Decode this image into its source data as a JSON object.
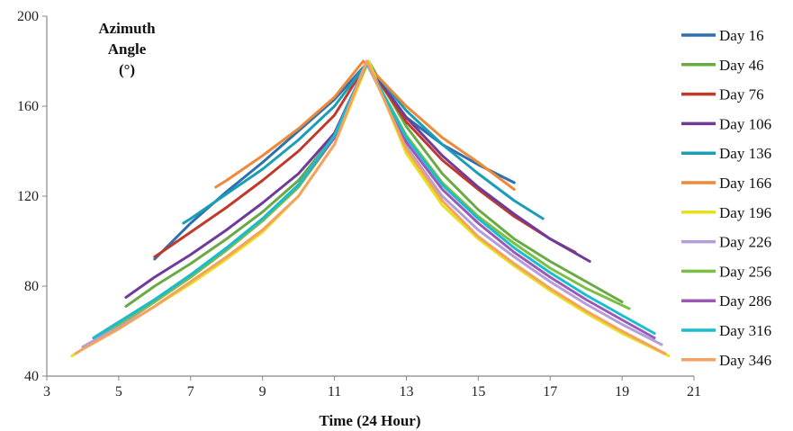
{
  "chart_data": {
    "type": "line",
    "title": "",
    "ylabel": "Azimuth Angle (°)",
    "ylabel_lines": [
      "Azimuth",
      "Angle",
      "(°)"
    ],
    "xlabel": "Time (24 Hour)",
    "xlim": [
      3,
      21
    ],
    "ylim": [
      40,
      200
    ],
    "x_ticks": [
      3,
      5,
      7,
      9,
      11,
      13,
      15,
      17,
      19,
      21
    ],
    "y_ticks": [
      40,
      80,
      120,
      160,
      200
    ],
    "grid": false,
    "legend_position": "right",
    "series": [
      {
        "name": "Day 16",
        "color": "#2e6fb0",
        "x": [
          6.0,
          7,
          8,
          9,
          10,
          11,
          11.9,
          13,
          14,
          15,
          16.0
        ],
        "y": [
          92,
          108,
          122,
          135,
          149,
          163,
          179,
          155,
          143,
          134,
          126
        ]
      },
      {
        "name": "Day 46",
        "color": "#6aaa44",
        "x": [
          5.2,
          6,
          7,
          8,
          9,
          10,
          11,
          11.95,
          13,
          14,
          15,
          16,
          17,
          18,
          19.0
        ],
        "y": [
          71,
          80,
          90,
          101,
          113,
          127,
          147,
          180,
          151,
          130,
          114,
          101,
          91,
          82,
          73
        ]
      },
      {
        "name": "Day 76",
        "color": "#c0392b",
        "x": [
          6.0,
          7,
          8,
          9,
          10,
          11,
          11.9,
          13,
          14,
          15,
          16,
          17,
          17.7
        ],
        "y": [
          93,
          104,
          115,
          127,
          140,
          156,
          179,
          153,
          136,
          123,
          111,
          101,
          95
        ]
      },
      {
        "name": "Day 106",
        "color": "#6f3b99",
        "x": [
          5.2,
          6,
          7,
          8,
          9,
          10,
          11,
          11.9,
          13,
          14,
          15,
          16,
          17,
          18.1
        ],
        "y": [
          75,
          84,
          94,
          105,
          117,
          130,
          148,
          179,
          155,
          138,
          124,
          112,
          101,
          91
        ]
      },
      {
        "name": "Day 136",
        "color": "#1a9db5",
        "x": [
          6.8,
          7,
          8,
          9,
          10,
          11,
          11.9,
          13,
          14,
          15,
          16,
          16.8
        ],
        "y": [
          108,
          110,
          121,
          132,
          145,
          160,
          179,
          158,
          143,
          130,
          118,
          110
        ]
      },
      {
        "name": "Day 166",
        "color": "#f0883a",
        "x": [
          7.7,
          8,
          9,
          10,
          11,
          11.8,
          13,
          14,
          15,
          16.0
        ],
        "y": [
          124,
          127,
          138,
          150,
          164,
          180,
          160,
          146,
          135,
          123
        ]
      },
      {
        "name": "Day 196",
        "color": "#e8e01a",
        "x": [
          3.7,
          4,
          5,
          6,
          7,
          8,
          9,
          10,
          11,
          11.95,
          13,
          14,
          15,
          16,
          17,
          18,
          19,
          20.3
        ],
        "y": [
          49,
          52,
          61,
          71,
          81,
          92,
          104,
          120,
          143,
          180,
          139,
          116,
          101,
          89,
          78,
          68,
          59,
          49
        ]
      },
      {
        "name": "Day 226",
        "color": "#b39ddb",
        "x": [
          4.0,
          5,
          6,
          7,
          8,
          9,
          10,
          11,
          11.9,
          13,
          14,
          15,
          16,
          17,
          18,
          19,
          20.1
        ],
        "y": [
          53,
          62,
          73,
          84,
          96,
          109,
          124,
          146,
          180,
          142,
          120,
          105,
          93,
          82,
          72,
          63,
          54
        ]
      },
      {
        "name": "Day 256",
        "color": "#7bc043",
        "x": [
          4.3,
          5,
          6,
          7,
          8,
          9,
          10,
          11,
          11.9,
          13,
          14,
          15,
          16,
          17,
          18,
          19.2
        ],
        "y": [
          57,
          63,
          73,
          84,
          96,
          109,
          124,
          146,
          179,
          147,
          126,
          111,
          99,
          88,
          79,
          70
        ]
      },
      {
        "name": "Day 286",
        "color": "#9b59b6",
        "x": [
          4.4,
          5,
          6,
          7,
          8,
          9,
          10,
          11,
          11.9,
          13,
          14,
          15,
          16,
          17,
          18,
          19,
          19.9
        ],
        "y": [
          58,
          64,
          74,
          85,
          97,
          110,
          125,
          146,
          179,
          144,
          123,
          108,
          95,
          84,
          74,
          65,
          57
        ]
      },
      {
        "name": "Day 316",
        "color": "#17becf",
        "x": [
          4.3,
          5,
          6,
          7,
          8,
          9,
          10,
          11,
          11.9,
          13,
          14,
          15,
          16,
          17,
          18,
          19,
          19.9
        ],
        "y": [
          57,
          64,
          74,
          85,
          97,
          110,
          125,
          147,
          179,
          146,
          125,
          110,
          97,
          86,
          76,
          67,
          59
        ]
      },
      {
        "name": "Day 346",
        "color": "#f4a261",
        "x": [
          3.8,
          4,
          5,
          6,
          7,
          8,
          9,
          10,
          11,
          11.9,
          13,
          14,
          15,
          16,
          17,
          18,
          19,
          20.2
        ],
        "y": [
          50,
          52,
          61,
          71,
          82,
          93,
          105,
          120,
          143,
          180,
          141,
          118,
          102,
          90,
          79,
          69,
          60,
          50
        ]
      }
    ]
  }
}
